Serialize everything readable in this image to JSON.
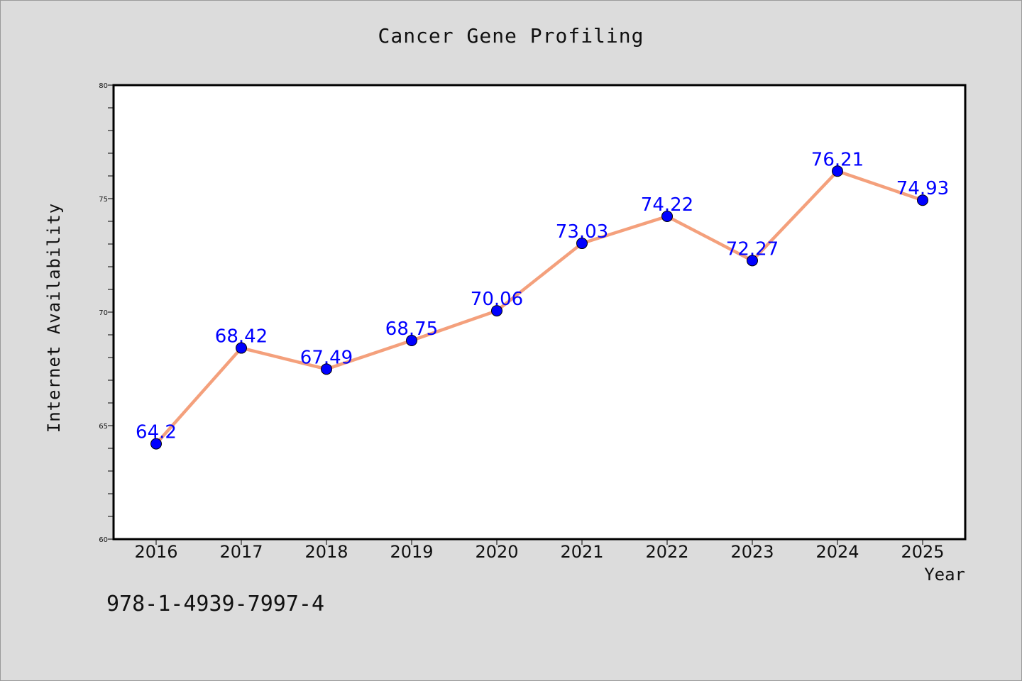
{
  "chart_data": {
    "type": "line",
    "title": "Cancer Gene Profiling",
    "xlabel": "Year",
    "ylabel": "Internet Availability",
    "x": [
      "2016",
      "2017",
      "2018",
      "2019",
      "2020",
      "2021",
      "2022",
      "2023",
      "2024",
      "2025"
    ],
    "series": [
      {
        "values": [
          64.2,
          68.42,
          67.49,
          68.75,
          70.06,
          73.03,
          74.22,
          72.27,
          76.21,
          74.93
        ],
        "labels": [
          "64.2",
          "68.42",
          "67.49",
          "68.75",
          "70.06",
          "73.03",
          "74.22",
          "72.27",
          "76.21",
          "74.93"
        ]
      }
    ],
    "ylim": [
      60,
      80
    ],
    "yticks": [
      "60",
      "65",
      "70",
      "75",
      "80"
    ],
    "grid": false,
    "colors": {
      "line": "#f4a07c",
      "marker": "#0000ff",
      "label": "#0000ff",
      "background": "#dcdcdc",
      "plot_background": "#ffffff"
    }
  },
  "footer_code": "978-1-4939-7997-4"
}
